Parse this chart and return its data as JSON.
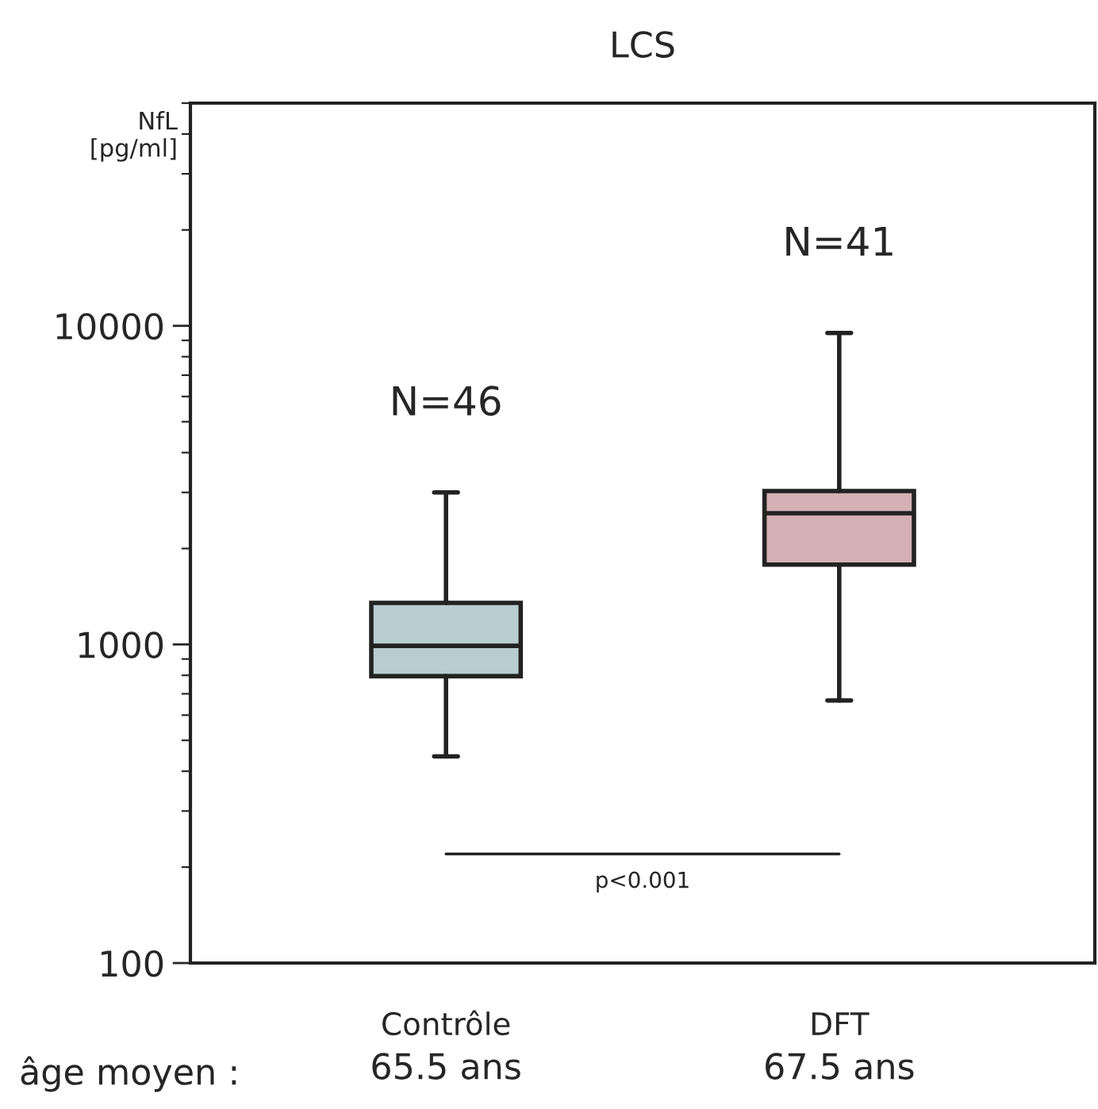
{
  "chart_data": {
    "type": "box",
    "title": "LCS",
    "ylabel": "NfL\n[pg/ml]",
    "categories": [
      "Contrôle",
      "DFT"
    ],
    "boxes": [
      {
        "low": 445,
        "q1": 795,
        "median": 990,
        "q3": 1350,
        "high": 3000
      },
      {
        "low": 667,
        "q1": 1780,
        "median": 2580,
        "q3": 3030,
        "high": 9500
      }
    ],
    "colors": [
      "#b8cdd0",
      "#d4b1b4"
    ],
    "log": "y",
    "ylim": [
      100,
      50000
    ],
    "yticks": [
      100,
      1000,
      10000
    ],
    "grid": false,
    "annotations": [
      "N=46",
      "N=41",
      "p<0.001",
      "âge moyen :",
      "65.5 ans",
      "67.5 ans"
    ]
  }
}
